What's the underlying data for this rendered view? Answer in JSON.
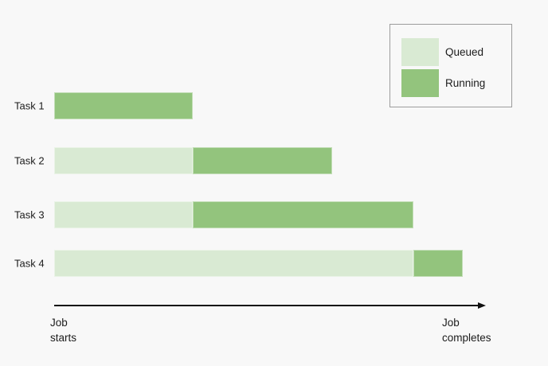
{
  "colors": {
    "background": "#f8f8f8",
    "queued": "#d9ead3",
    "running": "#93c47d",
    "text": "#1c1c1c",
    "axis": "#111111",
    "legend_border": "#9c9c9c"
  },
  "legend": {
    "items": [
      {
        "label": "Queued",
        "state": "queued"
      },
      {
        "label": "Running",
        "state": "running"
      }
    ]
  },
  "axis": {
    "start_label_lines": [
      "Job",
      "starts"
    ],
    "end_label_lines": [
      "Job",
      "completes"
    ]
  },
  "chart_data": {
    "type": "gantt",
    "x_unit": "fraction of job duration (0 = job starts, 1 = job completes)",
    "x_range": [
      0,
      1
    ],
    "x_start_label": "Job starts",
    "x_end_label": "Job completes",
    "legend_position": "top-right",
    "legend_entries": [
      "Queued",
      "Running"
    ],
    "grid": false,
    "tasks": [
      {
        "label": "Task 1",
        "segments": [
          {
            "state": "running",
            "start": 0.0,
            "end": 0.34
          }
        ]
      },
      {
        "label": "Task 2",
        "segments": [
          {
            "state": "queued",
            "start": 0.0,
            "end": 0.34
          },
          {
            "state": "running",
            "start": 0.34,
            "end": 0.68
          }
        ]
      },
      {
        "label": "Task 3",
        "segments": [
          {
            "state": "queued",
            "start": 0.0,
            "end": 0.34
          },
          {
            "state": "running",
            "start": 0.34,
            "end": 0.88
          }
        ]
      },
      {
        "label": "Task 4",
        "segments": [
          {
            "state": "queued",
            "start": 0.0,
            "end": 0.88
          },
          {
            "state": "running",
            "start": 0.88,
            "end": 1.0
          }
        ]
      }
    ]
  }
}
